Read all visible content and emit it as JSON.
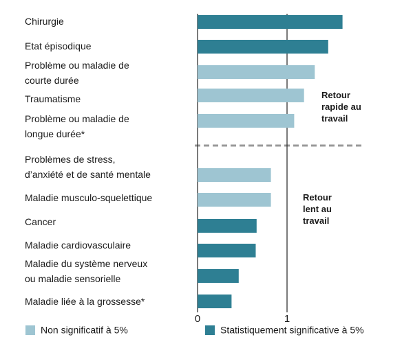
{
  "chart_data": {
    "type": "bar",
    "orientation": "horizontal",
    "categories": [
      "Chirurgie",
      "Etat épisodique",
      "Problème ou maladie de\ncourte durée",
      "Traumatisme",
      "Problème ou maladie de\nlongue durée*",
      "Problèmes de stress,\nd’anxiété et de santé mentale",
      "Maladie musculo-squelettique",
      "Cancer",
      "Maladie cardiovasculaire",
      "Maladie du système nerveux\nou maladie sensorielle",
      "Maladie liée à la grossesse*"
    ],
    "series": [
      {
        "name": "Non significatif à 5%",
        "color": "#9ec5d2",
        "values": [
          null,
          null,
          1.31,
          1.19,
          1.08,
          0.82,
          0.82,
          null,
          null,
          null,
          null
        ]
      },
      {
        "name": "Statistiquement significative à 5%",
        "color": "#2e7f93",
        "values": [
          1.62,
          1.46,
          null,
          null,
          null,
          null,
          null,
          0.66,
          0.65,
          0.46,
          0.38
        ]
      }
    ],
    "xlim": [
      0,
      2.3
    ],
    "xticks": [
      0,
      1
    ],
    "annotations": [
      "Retour\nrapide au\ntravail",
      "Retour\nlent au\ntravail"
    ]
  }
}
